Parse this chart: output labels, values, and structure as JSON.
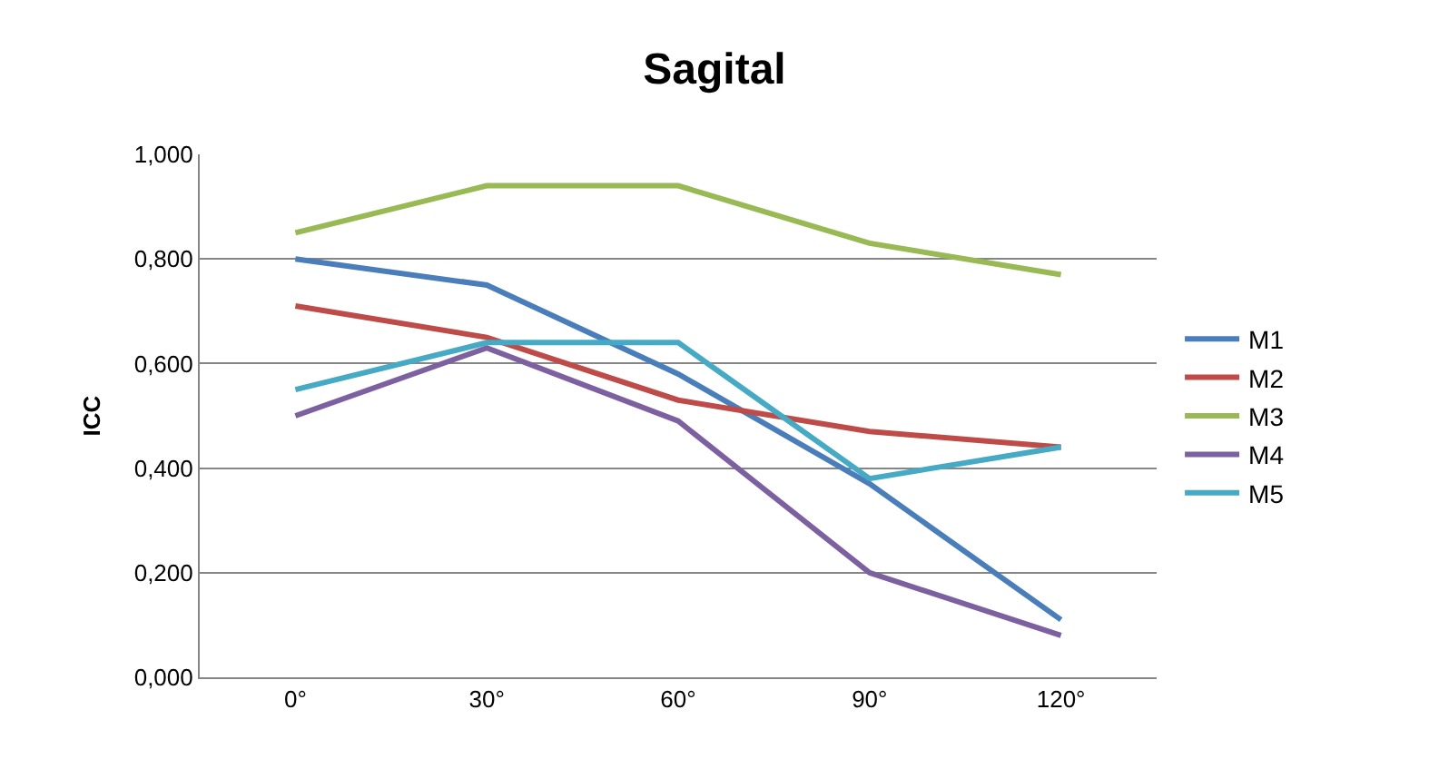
{
  "chart_data": {
    "type": "line",
    "title": "Sagital",
    "ylabel": "ICC",
    "categories": [
      "0°",
      "30°",
      "60°",
      "90°",
      "120°"
    ],
    "series": [
      {
        "name": "M1",
        "color": "#4a7ebb",
        "values": [
          0.8,
          0.75,
          0.58,
          0.37,
          0.11
        ]
      },
      {
        "name": "M2",
        "color": "#be4b48",
        "values": [
          0.71,
          0.65,
          0.53,
          0.47,
          0.44
        ]
      },
      {
        "name": "M3",
        "color": "#98b954",
        "values": [
          0.85,
          0.94,
          0.94,
          0.83,
          0.77
        ]
      },
      {
        "name": "M4",
        "color": "#7d60a0",
        "values": [
          0.5,
          0.63,
          0.49,
          0.2,
          0.08
        ]
      },
      {
        "name": "M5",
        "color": "#46aac5",
        "values": [
          0.55,
          0.64,
          0.64,
          0.38,
          0.44
        ]
      }
    ],
    "ylim": [
      0,
      1
    ],
    "yticks": [
      {
        "value": 0,
        "label": "0,000"
      },
      {
        "value": 0.2,
        "label": "0,200"
      },
      {
        "value": 0.4,
        "label": "0,400"
      },
      {
        "value": 0.6,
        "label": "0,600"
      },
      {
        "value": 0.8,
        "label": "0,800"
      },
      {
        "value": 1,
        "label": "1,000"
      }
    ],
    "grid": "y",
    "legend": "right",
    "marker": "none",
    "line_style": "solid"
  }
}
